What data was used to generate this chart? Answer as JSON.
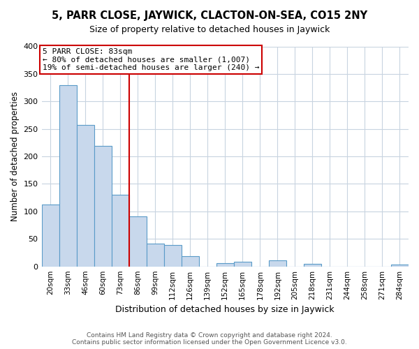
{
  "title": "5, PARR CLOSE, JAYWICK, CLACTON-ON-SEA, CO15 2NY",
  "subtitle": "Size of property relative to detached houses in Jaywick",
  "xlabel": "Distribution of detached houses by size in Jaywick",
  "ylabel": "Number of detached properties",
  "bar_labels": [
    "20sqm",
    "33sqm",
    "46sqm",
    "60sqm",
    "73sqm",
    "86sqm",
    "99sqm",
    "112sqm",
    "126sqm",
    "139sqm",
    "152sqm",
    "165sqm",
    "178sqm",
    "192sqm",
    "205sqm",
    "218sqm",
    "231sqm",
    "244sqm",
    "258sqm",
    "271sqm",
    "284sqm"
  ],
  "bar_values": [
    113,
    330,
    257,
    219,
    130,
    91,
    42,
    39,
    18,
    0,
    6,
    9,
    0,
    11,
    0,
    5,
    0,
    0,
    0,
    0,
    4
  ],
  "bar_color": "#c8d8ec",
  "bar_edge_color": "#5a9bc8",
  "vline_x_index": 4.5,
  "vline_color": "#cc0000",
  "annotation_line1": "5 PARR CLOSE: 83sqm",
  "annotation_line2": "← 80% of detached houses are smaller (1,007)",
  "annotation_line3": "19% of semi-detached houses are larger (240) →",
  "annotation_box_color": "#ffffff",
  "annotation_box_edge": "#cc0000",
  "ylim": [
    0,
    400
  ],
  "yticks": [
    0,
    50,
    100,
    150,
    200,
    250,
    300,
    350,
    400
  ],
  "footer_line1": "Contains HM Land Registry data © Crown copyright and database right 2024.",
  "footer_line2": "Contains public sector information licensed under the Open Government Licence v3.0.",
  "bg_color": "#ffffff",
  "grid_color": "#c8d4e0",
  "title_fontsize": 10.5,
  "subtitle_fontsize": 9,
  "ylabel_fontsize": 8.5,
  "xlabel_fontsize": 9,
  "tick_fontsize": 7.5,
  "annotation_fontsize": 8,
  "footer_fontsize": 6.5
}
